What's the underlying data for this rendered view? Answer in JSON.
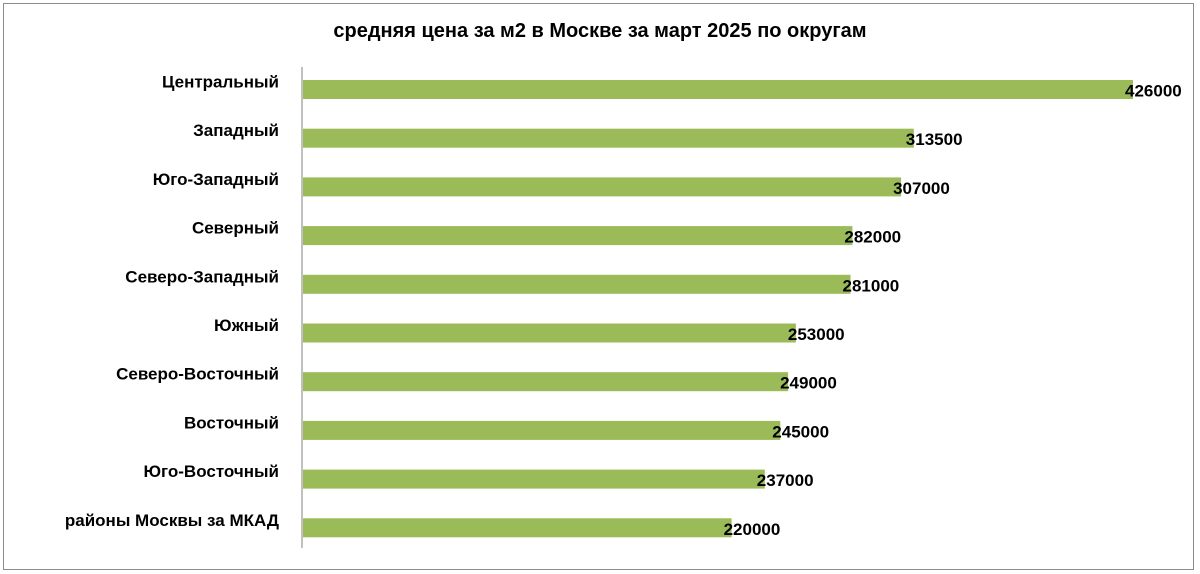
{
  "chart_data": {
    "type": "bar",
    "orientation": "horizontal",
    "title": "средняя цена за м2 в Москве за март 2025 по округам",
    "categories": [
      "Центральный",
      "Западный",
      "Юго-Западный",
      "Северный",
      "Северо-Западный",
      "Южный",
      "Северо-Восточный",
      "Восточный",
      "Юго-Восточный",
      "районы Москвы за МКАД"
    ],
    "values": [
      426000,
      313500,
      307000,
      282000,
      281000,
      253000,
      249000,
      245000,
      237000,
      220000
    ],
    "value_labels": [
      "426000",
      "313500",
      "307000",
      "282000",
      "281000",
      "253000",
      "249000",
      "245000",
      "237000",
      "220000"
    ],
    "xlim": [
      0,
      426000
    ],
    "bar_color": "#9BBB59",
    "grid": false,
    "legend": "none",
    "data_labels": true
  }
}
